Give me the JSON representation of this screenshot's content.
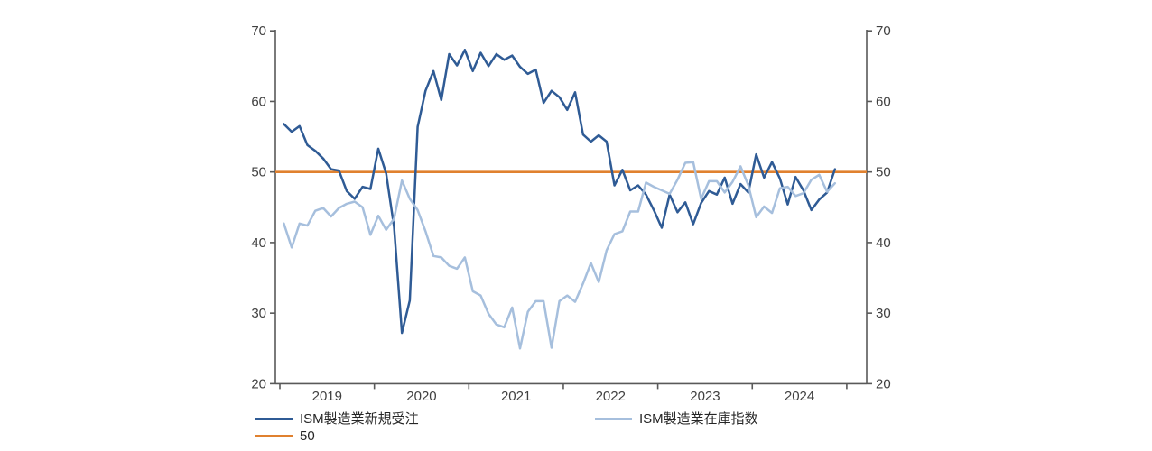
{
  "chart_data": {
    "type": "line",
    "title": "",
    "x": {
      "unit": "month",
      "start": "2019-01",
      "end": "2024-11",
      "tick_labels": [
        "2019",
        "2020",
        "2021",
        "2022",
        "2023",
        "2024"
      ]
    },
    "y": {
      "min": 20,
      "max": 70,
      "ticks": [
        20,
        30,
        40,
        50,
        60,
        70
      ],
      "dual_axis": true
    },
    "grid": false,
    "legend_position": "bottom",
    "reference_line": {
      "label": "50",
      "value": 50,
      "color": "#E0812F"
    },
    "series": [
      {
        "name": "ISM製造業新規受注",
        "color": "#2F5B95",
        "values": [
          56.8,
          55.7,
          56.5,
          53.8,
          53.0,
          51.9,
          50.4,
          50.2,
          47.3,
          46.2,
          47.9,
          47.6,
          53.3,
          49.8,
          42.2,
          27.2,
          31.8,
          56.4,
          61.5,
          64.3,
          60.2,
          66.7,
          65.1,
          67.3,
          64.3,
          66.9,
          65.0,
          66.7,
          65.9,
          66.5,
          64.9,
          63.9,
          64.5,
          59.8,
          61.5,
          60.6,
          58.8,
          61.3,
          55.3,
          54.3,
          55.2,
          54.3,
          48.1,
          50.3,
          47.4,
          48.1,
          46.8,
          44.6,
          42.1,
          46.8,
          44.3,
          45.7,
          42.6,
          45.6,
          47.3,
          46.8,
          49.2,
          45.5,
          48.3,
          47.1,
          52.5,
          49.2,
          51.4,
          49.1,
          45.4,
          49.3,
          47.4,
          44.6,
          46.1,
          47.1,
          50.4
        ]
      },
      {
        "name": "ISM製造業在庫指数",
        "color": "#A6BFDD",
        "values": [
          42.7,
          39.3,
          42.7,
          42.4,
          44.5,
          44.9,
          43.7,
          44.9,
          45.5,
          45.8,
          45.0,
          41.1,
          43.8,
          41.8,
          43.4,
          48.8,
          46.2,
          44.6,
          41.6,
          38.1,
          37.9,
          36.7,
          36.3,
          37.9,
          33.1,
          32.5,
          29.9,
          28.4,
          28.0,
          30.8,
          25.0,
          30.2,
          31.7,
          31.7,
          25.1,
          31.7,
          32.5,
          31.6,
          34.2,
          37.1,
          34.4,
          38.9,
          41.2,
          41.6,
          44.4,
          44.4,
          48.5,
          47.9,
          47.4,
          46.9,
          48.9,
          51.3,
          51.4,
          46.2,
          48.7,
          48.7,
          47.1,
          48.6,
          50.8,
          48.1,
          43.6,
          45.1,
          44.2,
          47.7,
          47.9,
          46.6,
          47.0,
          48.9,
          49.6,
          47.2,
          48.4
        ]
      }
    ]
  },
  "colors": {
    "axis": "#595959",
    "tick_text": "#404040",
    "legend_text": "#262626",
    "background": "#ffffff"
  }
}
